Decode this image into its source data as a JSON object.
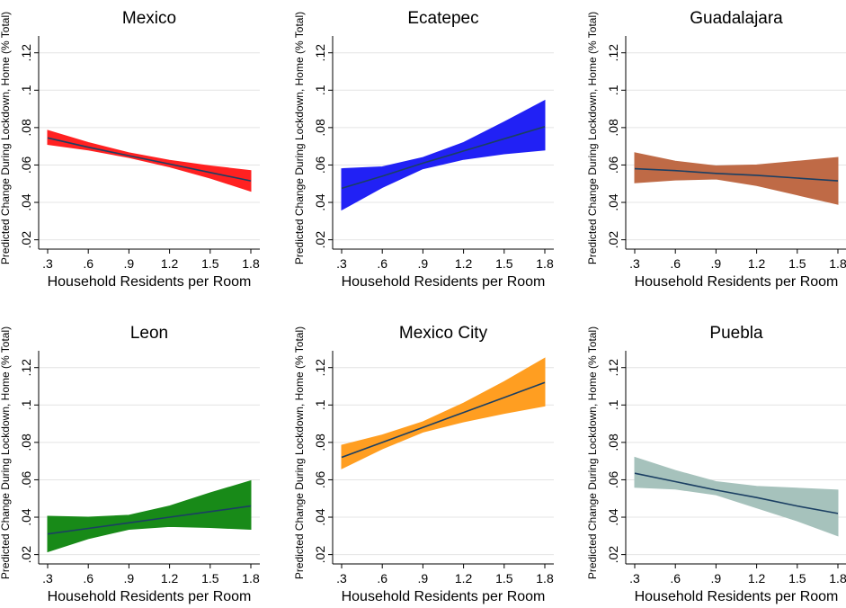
{
  "chart_data": [
    {
      "type": "area",
      "title": "Mexico",
      "xlabel": "Household Residents per Room",
      "ylabel": "Predicted Change During Lockdown, Home (% Total)",
      "color": "#ff2121",
      "x": [
        0.3,
        0.6,
        0.9,
        1.2,
        1.5,
        1.8
      ],
      "xticks": [
        ".3",
        ".6",
        ".9",
        "1.2",
        "1.5",
        "1.8"
      ],
      "yticks": [
        ".02",
        ".04",
        ".06",
        ".08",
        ".1",
        ".12"
      ],
      "ylim": [
        0.015,
        0.129
      ],
      "fit": [
        0.0745,
        0.0695,
        0.065,
        0.0605,
        0.056,
        0.0515
      ],
      "upper": [
        0.0785,
        0.072,
        0.0665,
        0.0625,
        0.0595,
        0.057
      ],
      "lower": [
        0.071,
        0.068,
        0.064,
        0.059,
        0.053,
        0.046
      ]
    },
    {
      "type": "area",
      "title": "Ecatepec",
      "xlabel": "Household Residents per Room",
      "ylabel": "Predicted Change During Lockdown, Home (% Total)",
      "color": "#2121f5",
      "x": [
        0.3,
        0.6,
        0.9,
        1.2,
        1.5,
        1.8
      ],
      "xticks": [
        ".3",
        ".6",
        ".9",
        "1.2",
        "1.5",
        "1.8"
      ],
      "yticks": [
        ".02",
        ".04",
        ".06",
        ".08",
        ".1",
        ".12"
      ],
      "ylim": [
        0.015,
        0.129
      ],
      "fit": [
        0.0475,
        0.054,
        0.061,
        0.0675,
        0.074,
        0.0805
      ],
      "upper": [
        0.058,
        0.059,
        0.064,
        0.072,
        0.083,
        0.0945
      ],
      "lower": [
        0.036,
        0.048,
        0.058,
        0.063,
        0.066,
        0.068
      ]
    },
    {
      "type": "area",
      "title": "Guadalajara",
      "xlabel": "Household Residents per Room",
      "ylabel": "Predicted Change During Lockdown, Home (% Total)",
      "color": "#bf6a46",
      "x": [
        0.3,
        0.6,
        0.9,
        1.2,
        1.5,
        1.8
      ],
      "xticks": [
        ".3",
        ".6",
        ".9",
        "1.2",
        "1.5",
        "1.8"
      ],
      "yticks": [
        ".02",
        ".04",
        ".06",
        ".08",
        ".1",
        ".12"
      ],
      "ylim": [
        0.015,
        0.129
      ],
      "fit": [
        0.058,
        0.057,
        0.0555,
        0.0545,
        0.053,
        0.0515
      ],
      "upper": [
        0.0665,
        0.062,
        0.0595,
        0.06,
        0.062,
        0.064
      ],
      "lower": [
        0.0505,
        0.052,
        0.0525,
        0.049,
        0.044,
        0.039
      ]
    },
    {
      "type": "area",
      "title": "Leon",
      "xlabel": "Household Residents per Room",
      "ylabel": "Predicted Change During Lockdown, Home (% Total)",
      "color": "#188a18",
      "x": [
        0.3,
        0.6,
        0.9,
        1.2,
        1.5,
        1.8
      ],
      "xticks": [
        ".3",
        ".6",
        ".9",
        "1.2",
        "1.5",
        "1.8"
      ],
      "yticks": [
        ".02",
        ".04",
        ".06",
        ".08",
        ".1",
        ".12"
      ],
      "ylim": [
        0.015,
        0.129
      ],
      "fit": [
        0.031,
        0.034,
        0.037,
        0.04,
        0.043,
        0.046
      ],
      "upper": [
        0.0405,
        0.04,
        0.041,
        0.046,
        0.053,
        0.0595
      ],
      "lower": [
        0.0215,
        0.0285,
        0.0335,
        0.035,
        0.0345,
        0.0335
      ]
    },
    {
      "type": "area",
      "title": "Mexico City",
      "xlabel": "Household Residents per Room",
      "ylabel": "Predicted Change During Lockdown, Home (% Total)",
      "color": "#ff9e21",
      "x": [
        0.3,
        0.6,
        0.9,
        1.2,
        1.5,
        1.8
      ],
      "xticks": [
        ".3",
        ".6",
        ".9",
        "1.2",
        "1.5",
        "1.8"
      ],
      "yticks": [
        ".02",
        ".04",
        ".06",
        ".08",
        ".1",
        ".12"
      ],
      "ylim": [
        0.015,
        0.129
      ],
      "fit": [
        0.072,
        0.08,
        0.088,
        0.096,
        0.104,
        0.112
      ],
      "upper": [
        0.0785,
        0.084,
        0.091,
        0.101,
        0.1125,
        0.125
      ],
      "lower": [
        0.066,
        0.0765,
        0.0855,
        0.091,
        0.0955,
        0.0995
      ]
    },
    {
      "type": "area",
      "title": "Puebla",
      "xlabel": "Household Residents per Room",
      "ylabel": "Predicted Change During Lockdown, Home (% Total)",
      "color": "#a6c2bc",
      "x": [
        0.3,
        0.6,
        0.9,
        1.2,
        1.5,
        1.8
      ],
      "xticks": [
        ".3",
        ".6",
        ".9",
        "1.2",
        "1.5",
        "1.8"
      ],
      "yticks": [
        ".02",
        ".04",
        ".06",
        ".08",
        ".1",
        ".12"
      ],
      "ylim": [
        0.015,
        0.129
      ],
      "fit": [
        0.0635,
        0.059,
        0.0545,
        0.0505,
        0.046,
        0.042
      ],
      "upper": [
        0.072,
        0.065,
        0.059,
        0.0565,
        0.0555,
        0.0545
      ],
      "lower": [
        0.056,
        0.055,
        0.052,
        0.045,
        0.038,
        0.03
      ]
    }
  ]
}
